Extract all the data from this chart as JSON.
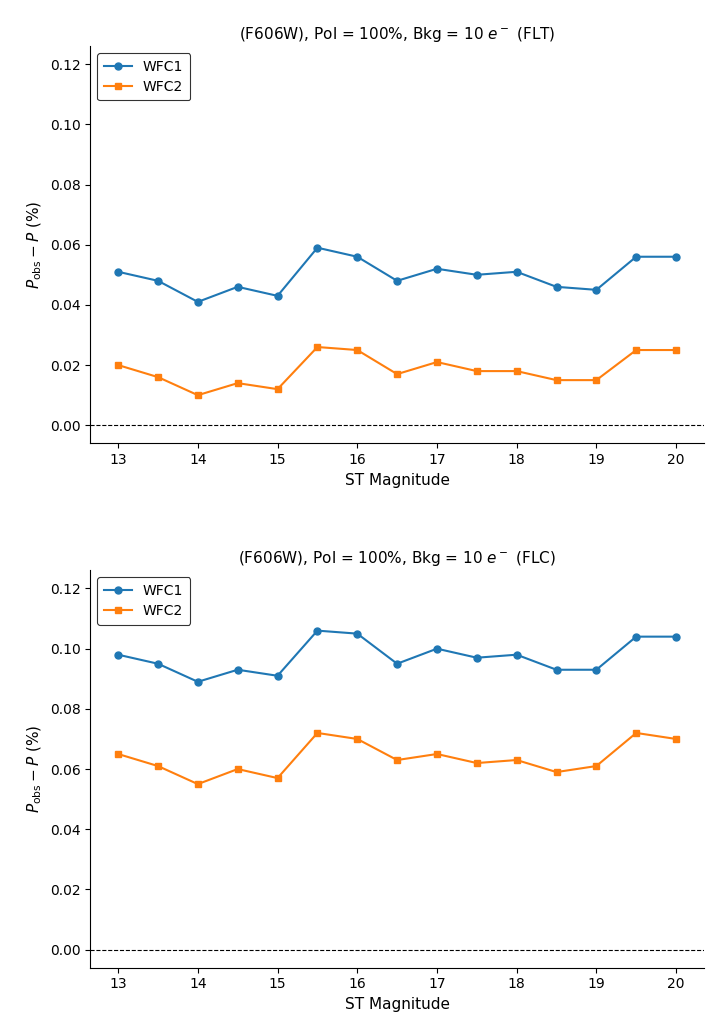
{
  "x": [
    13,
    13.5,
    14,
    14.5,
    15,
    15.5,
    16,
    16.5,
    17,
    17.5,
    18,
    18.5,
    19,
    19.5,
    20
  ],
  "flt_wfc1": [
    0.051,
    0.048,
    0.041,
    0.046,
    0.043,
    0.059,
    0.056,
    0.048,
    0.052,
    0.05,
    0.051,
    0.046,
    0.045,
    0.056,
    0.056
  ],
  "flt_wfc2": [
    0.02,
    0.016,
    0.01,
    0.014,
    0.012,
    0.026,
    0.025,
    0.017,
    0.021,
    0.018,
    0.018,
    0.015,
    0.015,
    0.025,
    0.025
  ],
  "flc_wfc1": [
    0.098,
    0.095,
    0.089,
    0.093,
    0.091,
    0.106,
    0.105,
    0.095,
    0.1,
    0.097,
    0.098,
    0.093,
    0.093,
    0.104,
    0.104
  ],
  "flc_wfc2": [
    0.065,
    0.061,
    0.055,
    0.06,
    0.057,
    0.072,
    0.07,
    0.063,
    0.065,
    0.062,
    0.063,
    0.059,
    0.061,
    0.072,
    0.07
  ],
  "wfc1_color": "#1f77b4",
  "wfc2_color": "#ff7f0e",
  "title_flt": "(F606W), Pol = 100%, Bkg = 10 $e^-$ (FLT)",
  "title_flc": "(F606W), Pol = 100%, Bkg = 10 $e^-$ (FLC)",
  "xlabel": "ST Magnitude",
  "ylabel": "$P_{\\mathrm{obs}} - P$ (%)",
  "ylim": [
    -0.006,
    0.126
  ],
  "xlim": [
    12.65,
    20.35
  ],
  "yticks": [
    0.0,
    0.02,
    0.04,
    0.06,
    0.08,
    0.1,
    0.12
  ],
  "xticks": [
    13,
    14,
    15,
    16,
    17,
    18,
    19,
    20
  ],
  "figsize": [
    7.22,
    10.24
  ],
  "dpi": 100
}
